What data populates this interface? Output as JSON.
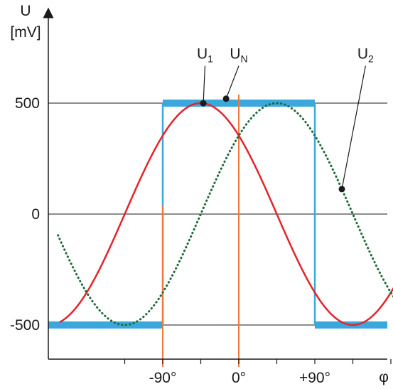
{
  "chart_data": {
    "type": "line",
    "ylabel": "U",
    "yunit": "[mV]",
    "xlabel": "φ",
    "xlim": [
      -225,
      270
    ],
    "ylim": [
      -650,
      900
    ],
    "yticks": [
      {
        "value": 500,
        "label": "500"
      },
      {
        "value": 0,
        "label": "0"
      },
      {
        "value": -500,
        "label": "-500"
      }
    ],
    "xticks": [
      {
        "value": -90,
        "label": "-90°"
      },
      {
        "value": 0,
        "label": "0°"
      },
      {
        "value": 90,
        "label": "+90°"
      }
    ],
    "grid": "horizontal",
    "series": [
      {
        "name": "U",
        "sub": "1",
        "style": "solid",
        "color": "#e3242b",
        "amplitude": 500,
        "phase_deg": -45,
        "x_range": [
          -212,
          258
        ],
        "label_at": {
          "x": -40,
          "y": 700
        },
        "marker_at_x": -42
      },
      {
        "name": "U",
        "sub": "2",
        "style": "dotted",
        "color": "#1e6b3a",
        "amplitude": 500,
        "phase_deg": 45,
        "x_range": [
          -214,
          255
        ],
        "label_at": {
          "x": 150,
          "y": 700
        },
        "marker_at_x": 122
      },
      {
        "name": "U",
        "sub": "N",
        "style": "square",
        "color": "#3aa8dc",
        "levels": {
          "high": 500,
          "low": -500
        },
        "high_range": [
          -90,
          90
        ],
        "label_at": {
          "x": 0,
          "y": 700
        },
        "marker_at": {
          "x": -15,
          "y": 520
        }
      }
    ],
    "phase_markers": [
      -90,
      0
    ],
    "phase_marker_color": "#f0783c"
  }
}
